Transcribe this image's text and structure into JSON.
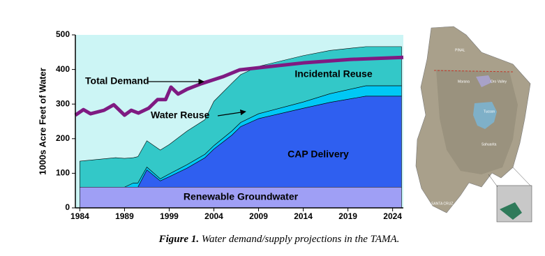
{
  "chart_data": {
    "type": "stacked_area_line",
    "y_label": "1000s  Acre Feet of Water",
    "ylim": [
      0,
      500
    ],
    "yticks": [
      0,
      100,
      200,
      300,
      400,
      500
    ],
    "xlim": [
      1983.5,
      2025.2
    ],
    "xticks": [
      1984,
      1989,
      1999,
      2004,
      2009,
      2014,
      2019,
      2024
    ],
    "background": "#ccf5f5",
    "x": [
      1984,
      1986,
      1988,
      1989,
      1991,
      1992,
      1994,
      1997,
      1999,
      2001,
      2003,
      2004,
      2006,
      2007,
      2009,
      2014,
      2017,
      2021,
      2025
    ],
    "series": [
      {
        "name": "Renewable Groundwater",
        "color": "#9f9ff5",
        "values": [
          60,
          60,
          60,
          60,
          60,
          60,
          60,
          60,
          60,
          60,
          60,
          60,
          60,
          60,
          60,
          60,
          60,
          60,
          60
        ]
      },
      {
        "name": "CAP Delivery",
        "color": "#2f5ff0",
        "values": [
          0,
          0,
          0,
          0,
          0,
          0,
          50,
          18,
          30,
          55,
          85,
          110,
          150,
          175,
          198,
          228,
          245,
          263,
          263
        ]
      },
      {
        "name": "Water Reuse",
        "color": "#00c8f5",
        "values": [
          0,
          0,
          0,
          0,
          12,
          12,
          8,
          6,
          8,
          10,
          10,
          10,
          12,
          12,
          14,
          18,
          25,
          30,
          30
        ]
      },
      {
        "name": "Incidental Reuse",
        "color": "#33c8c8",
        "values": [
          75,
          80,
          85,
          83,
          73,
          76,
          76,
          83,
          85,
          97,
          100,
          128,
          138,
          138,
          137,
          134,
          125,
          113,
          113
        ]
      }
    ],
    "line": {
      "name": "Total Demand",
      "color": "#7f1a82",
      "x": [
        1983.5,
        1984.4,
        1985.2,
        1986.7,
        1987.8,
        1989,
        1990.5,
        1992.1,
        1994.4,
        1996.4,
        1998.2,
        1999.2,
        2000,
        2001,
        2002.6,
        2005,
        2006.9,
        2009,
        2014,
        2019.2,
        2025.2
      ],
      "values": [
        268,
        284,
        272,
        282,
        298,
        268,
        282,
        274,
        288,
        313,
        313,
        349,
        329,
        343,
        359,
        379,
        399,
        405,
        419,
        429,
        435
      ]
    }
  },
  "map": {
    "labels": [
      "PINAL",
      "Marana",
      "Oro Valley",
      "Tucson",
      "Sahuarita",
      "SANTA CRUZ"
    ]
  },
  "caption": {
    "label": "Figure 1.",
    "text": " Water demand/supply projections in the TAMA."
  }
}
